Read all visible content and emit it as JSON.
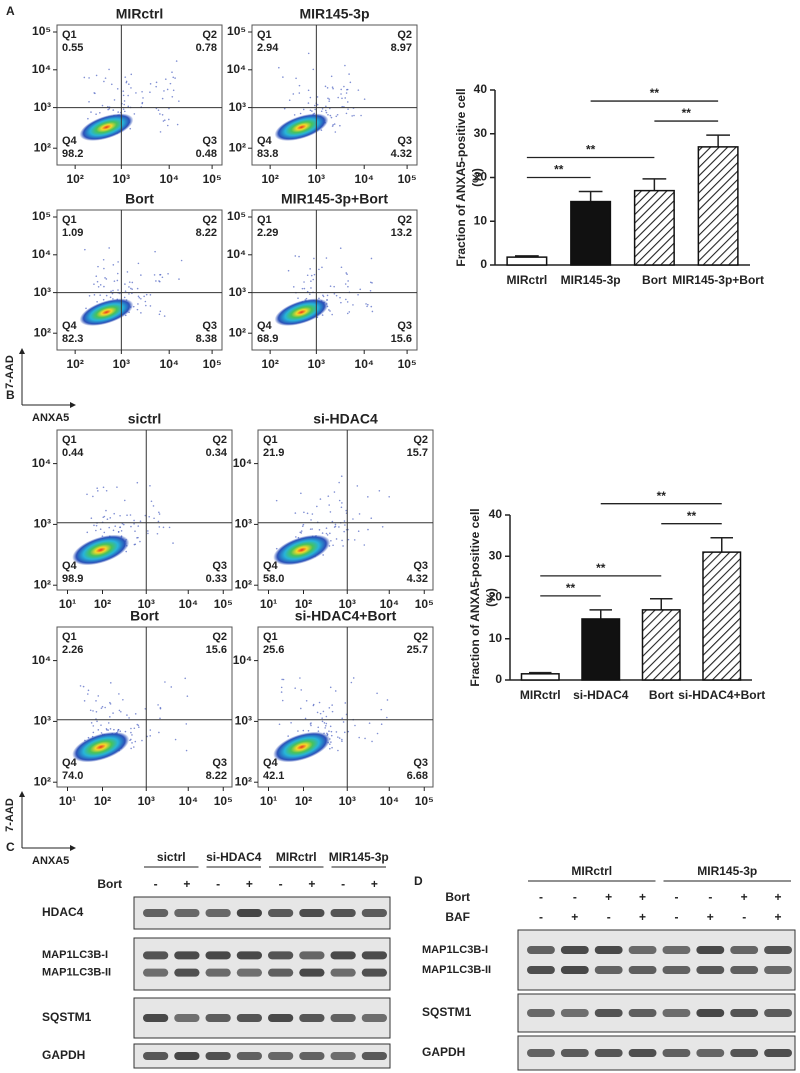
{
  "panel_labels": [
    "A",
    "B",
    "C",
    "D"
  ],
  "flow_panels": [
    {
      "axis_labels": {
        "y": "7-AAD",
        "x": "ANXA5"
      },
      "x_tick_labels": [
        "10²",
        "10³",
        "10⁴",
        "10⁵"
      ],
      "y_tick_labels": [
        "10⁵",
        "10⁴",
        "10³",
        "10²"
      ],
      "plots": [
        {
          "title": "MIRctrl",
          "quadrants": [
            {
              "name": "Q1",
              "value": "0.55"
            },
            {
              "name": "Q2",
              "value": "0.78"
            },
            {
              "name": "Q3",
              "value": "0.48"
            },
            {
              "name": "Q4",
              "value": "98.2"
            }
          ]
        },
        {
          "title": "MIR145-3p",
          "quadrants": [
            {
              "name": "Q1",
              "value": "2.94"
            },
            {
              "name": "Q2",
              "value": "8.97"
            },
            {
              "name": "Q3",
              "value": "4.32"
            },
            {
              "name": "Q4",
              "value": "83.8"
            }
          ]
        },
        {
          "title": "Bort",
          "quadrants": [
            {
              "name": "Q1",
              "value": "1.09"
            },
            {
              "name": "Q2",
              "value": "8.22"
            },
            {
              "name": "Q3",
              "value": "8.38"
            },
            {
              "name": "Q4",
              "value": "82.3"
            }
          ]
        },
        {
          "title": "MIR145-3p+Bort",
          "quadrants": [
            {
              "name": "Q1",
              "value": "2.29"
            },
            {
              "name": "Q2",
              "value": "13.2"
            },
            {
              "name": "Q3",
              "value": "15.6"
            },
            {
              "name": "Q4",
              "value": "68.9"
            }
          ]
        }
      ]
    },
    {
      "axis_labels": {
        "y": "7-AAD",
        "x": "ANXA5"
      },
      "x_tick_labels": [
        "10¹",
        "10²",
        "10³",
        "10⁴",
        "10⁵"
      ],
      "y_tick_labels": [
        "10⁴",
        "10³",
        "10²"
      ],
      "plots": [
        {
          "title": "sictrl",
          "quadrants": [
            {
              "name": "Q1",
              "value": "0.44"
            },
            {
              "name": "Q2",
              "value": "0.34"
            },
            {
              "name": "Q3",
              "value": "0.33"
            },
            {
              "name": "Q4",
              "value": "98.9"
            }
          ]
        },
        {
          "title": "si-HDAC4",
          "quadrants": [
            {
              "name": "Q1",
              "value": "21.9"
            },
            {
              "name": "Q2",
              "value": "15.7"
            },
            {
              "name": "Q3",
              "value": "4.32"
            },
            {
              "name": "Q4",
              "value": "58.0"
            }
          ]
        },
        {
          "title": "Bort",
          "quadrants": [
            {
              "name": "Q1",
              "value": "2.26"
            },
            {
              "name": "Q2",
              "value": "15.6"
            },
            {
              "name": "Q3",
              "value": "8.22"
            },
            {
              "name": "Q4",
              "value": "74.0"
            }
          ]
        },
        {
          "title": "si-HDAC4+Bort",
          "quadrants": [
            {
              "name": "Q1",
              "value": "25.6"
            },
            {
              "name": "Q2",
              "value": "25.7"
            },
            {
              "name": "Q3",
              "value": "6.68"
            },
            {
              "name": "Q4",
              "value": "42.1"
            }
          ]
        }
      ]
    }
  ],
  "chart_data": [
    {
      "type": "bar",
      "y_label": [
        "Fraction of ANXA5-positive cell",
        "(%)"
      ],
      "categories": [
        "MIRctrl",
        "MIR145-3p",
        "Bort",
        "MIR145-3p+Bort"
      ],
      "values": [
        1.8,
        14.5,
        17,
        27
      ],
      "errors": [
        0.3,
        2.3,
        2.7,
        2.7
      ],
      "patterns": [
        "open",
        "solid",
        "hatch",
        "hatch"
      ],
      "ylim": [
        0,
        40
      ],
      "yticks": [
        0,
        10,
        20,
        30,
        40
      ],
      "significance": [
        {
          "label": "**",
          "groups": [
            0,
            1
          ]
        },
        {
          "label": "**",
          "groups": [
            0,
            2
          ]
        },
        {
          "label": "**",
          "groups": [
            2,
            3
          ]
        },
        {
          "label": "**",
          "groups": [
            1,
            3
          ]
        }
      ]
    },
    {
      "type": "bar",
      "y_label": [
        "Fraction of ANXA5-positive cell",
        "(%)"
      ],
      "categories": [
        "MIRctrl",
        "si-HDAC4",
        "Bort",
        "si-HDAC4+Bort"
      ],
      "values": [
        1.5,
        14.8,
        17,
        31
      ],
      "errors": [
        0.3,
        2.2,
        2.7,
        3.5
      ],
      "patterns": [
        "open",
        "solid",
        "hatch",
        "hatch"
      ],
      "ylim": [
        0,
        40
      ],
      "yticks": [
        0,
        10,
        20,
        30,
        40
      ],
      "significance": [
        {
          "label": "**",
          "groups": [
            0,
            1
          ]
        },
        {
          "label": "**",
          "groups": [
            0,
            2
          ]
        },
        {
          "label": "**",
          "groups": [
            2,
            3
          ]
        },
        {
          "label": "**",
          "groups": [
            1,
            3
          ]
        }
      ]
    }
  ],
  "blots": [
    {
      "groups": [
        "sictrl",
        "si-HDAC4",
        "MIRctrl",
        "MIR145-3p"
      ],
      "conditions": [
        {
          "name": "Bort",
          "signs": [
            "-",
            "+",
            "-",
            "+",
            "-",
            "+",
            "-",
            "+"
          ]
        }
      ],
      "rows": [
        {
          "labels": [
            "HDAC4"
          ]
        },
        {
          "labels": [
            "MAP1LC3B-I",
            "MAP1LC3B-II"
          ]
        },
        {
          "labels": [
            "SQSTM1"
          ]
        },
        {
          "labels": [
            "GAPDH"
          ]
        }
      ]
    },
    {
      "groups": [
        "MIRctrl",
        "MIR145-3p"
      ],
      "conditions": [
        {
          "name": "Bort",
          "signs": [
            "-",
            "-",
            "+",
            "+",
            "-",
            "-",
            "+",
            "+"
          ]
        },
        {
          "name": "BAF",
          "signs": [
            "-",
            "+",
            "-",
            "+",
            "-",
            "+",
            "-",
            "+"
          ]
        }
      ],
      "rows": [
        {
          "labels": [
            "MAP1LC3B-I",
            "MAP1LC3B-II"
          ]
        },
        {
          "labels": [
            "SQSTM1"
          ]
        },
        {
          "labels": [
            "GAPDH"
          ]
        }
      ]
    }
  ]
}
